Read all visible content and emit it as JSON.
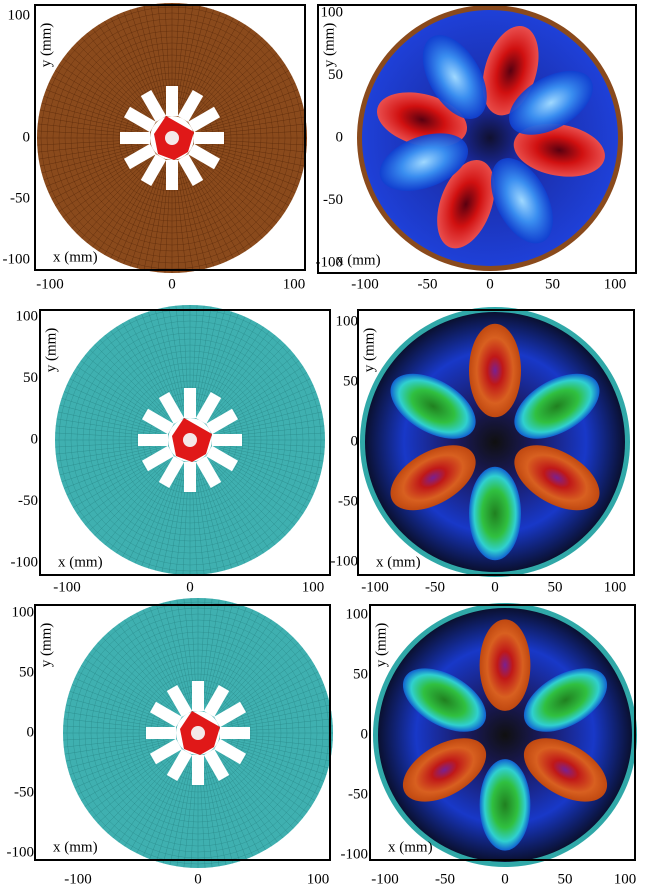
{
  "panels": [
    {
      "x_label": "x (mm)",
      "y_label": "y (mm)",
      "x_ticks": [
        -100,
        0,
        100
      ],
      "y_ticks": [
        100,
        0,
        -50,
        -100
      ]
    },
    {
      "x_label": "x (mm)",
      "y_label": "y (mm)",
      "x_ticks": [
        -100,
        -50,
        0,
        50,
        100
      ],
      "y_ticks": [
        100,
        50,
        0,
        -50,
        -100
      ]
    },
    {
      "x_label": "x (mm)",
      "y_label": "y (mm)",
      "x_ticks": [
        -100,
        0,
        100
      ],
      "y_ticks": [
        100,
        50,
        0,
        -50,
        -100
      ]
    },
    {
      "x_label": "x (mm)",
      "y_label": "y (mm)",
      "x_ticks": [
        -100,
        -50,
        0,
        50,
        100
      ],
      "y_ticks": [
        100,
        50,
        0,
        -50,
        -100
      ]
    },
    {
      "x_label": "x (mm)",
      "y_label": "y (mm)",
      "x_ticks": [
        -100,
        0,
        100
      ],
      "y_ticks": [
        100,
        50,
        0,
        -50,
        -100
      ]
    },
    {
      "x_label": "x (mm)",
      "y_label": "y (mm)",
      "x_ticks": [
        -100,
        -50,
        0,
        50,
        100
      ],
      "y_ticks": [
        100,
        50,
        0,
        -50,
        -100
      ]
    }
  ]
}
